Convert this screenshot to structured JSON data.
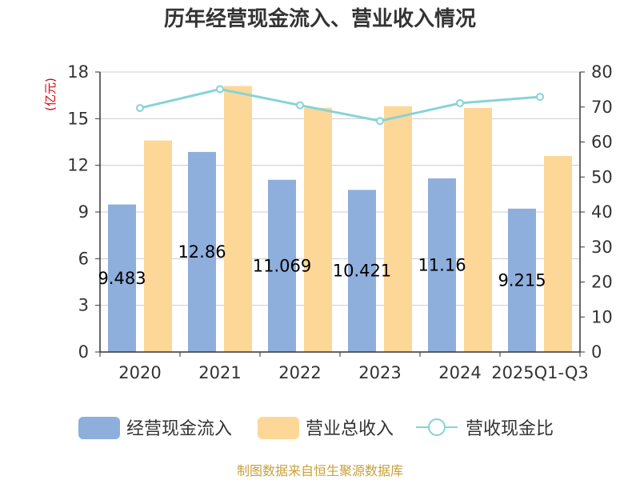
{
  "chart_data": {
    "type": "bar",
    "title": "历年经营现金流入、营业收入情况",
    "categories": [
      "2020",
      "2021",
      "2022",
      "2023",
      "2024",
      "2025Q1-Q3"
    ],
    "series": [
      {
        "name": "经营现金流入",
        "type": "bar",
        "axis": "left",
        "color": "#8eaedc",
        "values": [
          9.483,
          12.86,
          11.069,
          10.421,
          11.16,
          9.215
        ],
        "labels": [
          "9.483",
          "12.86",
          "11.069",
          "10.421",
          "11.16",
          "9.215"
        ]
      },
      {
        "name": "营业总收入",
        "type": "bar",
        "axis": "left",
        "color": "#fdd798",
        "values": [
          13.6,
          17.1,
          15.7,
          15.8,
          15.7,
          12.6
        ]
      },
      {
        "name": "营收现金比",
        "type": "line",
        "axis": "right",
        "color": "#84d4d8",
        "values": [
          69.7,
          75.1,
          70.5,
          66.0,
          71.1,
          72.9
        ]
      }
    ],
    "y_left": {
      "label": "(亿元)",
      "min": 0,
      "max": 18,
      "ticks": [
        0,
        3,
        6,
        9,
        12,
        15,
        18
      ]
    },
    "y_right": {
      "min": 0,
      "max": 80,
      "ticks": [
        0,
        10,
        20,
        30,
        40,
        50,
        60,
        70,
        80
      ]
    },
    "grid": true,
    "legend": "bottom",
    "source_note": "制图数据来自恒生聚源数据库"
  },
  "colors": {
    "axis": "#333333",
    "grid": "#cccccc",
    "left_label": "#e0000f",
    "right_label": "#e0000f",
    "source": "#c8a13a"
  }
}
